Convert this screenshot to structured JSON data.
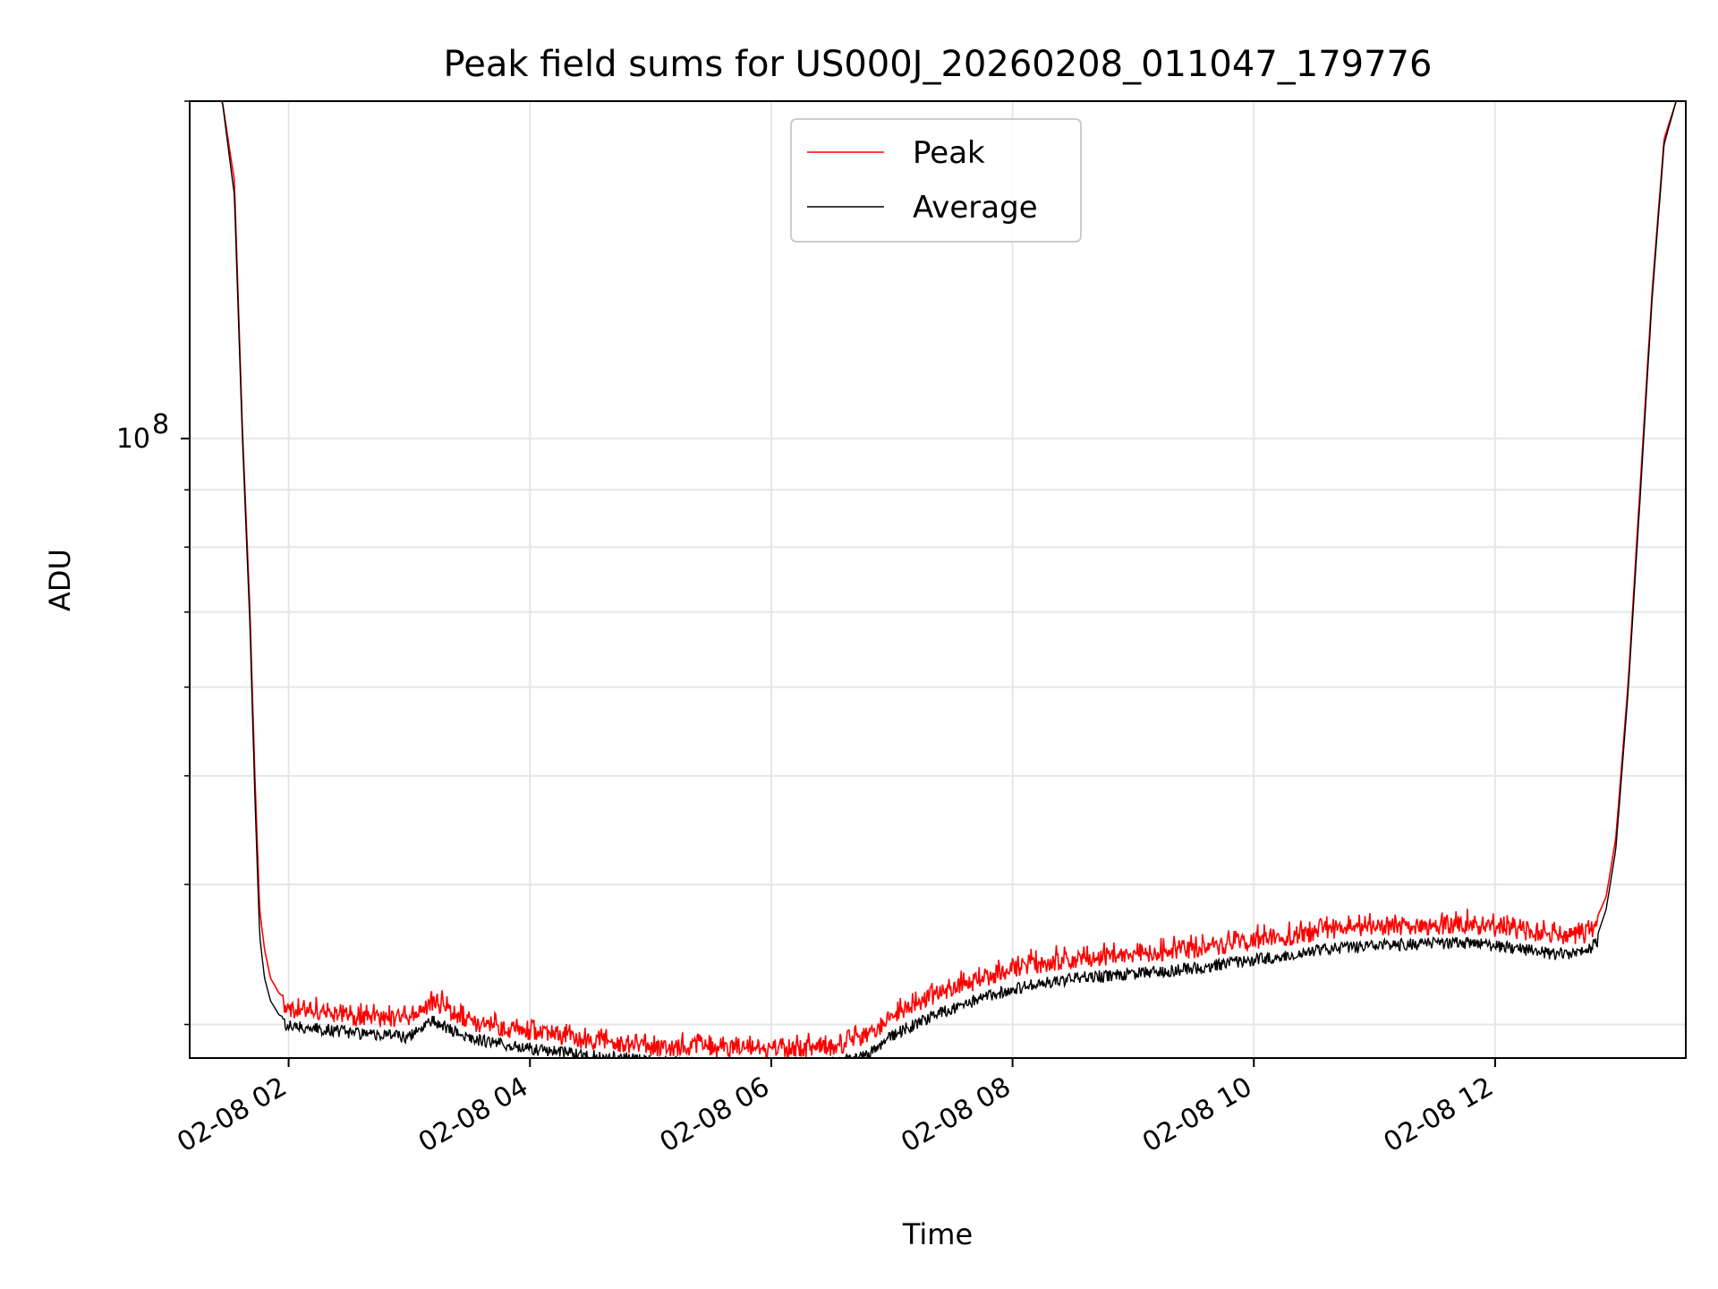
{
  "chart_data": {
    "type": "line",
    "title": "Peak field sums for US000J_20260208_011047_179776",
    "xlabel": "Time",
    "ylabel": "ADU",
    "yscale": "log",
    "ylim": [
      28000000,
      200000000
    ],
    "xlim": [
      1.18,
      13.58
    ],
    "grid": true,
    "legend_position": "top-center",
    "x_ticks": [
      {
        "value": 2,
        "label": "02-08 02"
      },
      {
        "value": 4,
        "label": "02-08 04"
      },
      {
        "value": 6,
        "label": "02-08 06"
      },
      {
        "value": 8,
        "label": "02-08 08"
      },
      {
        "value": 10,
        "label": "02-08 10"
      },
      {
        "value": 12,
        "label": "02-08 12"
      }
    ],
    "y_major_ticks": [
      {
        "value": 100000000,
        "base": "10",
        "exp": "8"
      }
    ],
    "y_minor_ticks": [
      30000000,
      40000000,
      50000000,
      60000000,
      70000000,
      80000000,
      90000000,
      200000000
    ],
    "x_unit_note": "hours since 2026-02-08 00:00",
    "series": [
      {
        "name": "Peak",
        "color": "#ff0000",
        "x": [
          1.38,
          1.45,
          1.55,
          1.62,
          1.68,
          1.72,
          1.76,
          1.8,
          1.85,
          1.92,
          2.0,
          2.5,
          3.0,
          3.1,
          3.2,
          3.4,
          3.6,
          4.0,
          4.5,
          5.0,
          5.5,
          6.0,
          6.5,
          6.8,
          7.0,
          7.3,
          7.6,
          8.0,
          8.5,
          9.0,
          9.5,
          10.0,
          10.4,
          10.5,
          11.0,
          11.5,
          11.8,
          12.2,
          12.5,
          12.75,
          12.85,
          12.92,
          13.0,
          13.1,
          13.2,
          13.3,
          13.4,
          13.5
        ],
        "y": [
          200000000,
          200000000,
          170000000,
          100000000,
          70000000,
          50000000,
          38000000,
          35000000,
          33000000,
          32000000,
          31500000,
          31000000,
          30800000,
          31300000,
          32000000,
          31000000,
          30500000,
          30000000,
          29500000,
          29100000,
          29000000,
          28900000,
          29100000,
          29700000,
          31000000,
          32200000,
          33100000,
          34200000,
          34900000,
          35200000,
          35600000,
          36200000,
          36600000,
          36900000,
          37200000,
          37400000,
          37400000,
          37000000,
          36600000,
          36700000,
          37500000,
          39000000,
          44000000,
          60000000,
          90000000,
          135000000,
          185000000,
          200000000
        ]
      },
      {
        "name": "Average",
        "color": "#000000",
        "x": [
          1.38,
          1.45,
          1.55,
          1.62,
          1.68,
          1.72,
          1.76,
          1.8,
          1.85,
          1.92,
          2.0,
          2.5,
          3.0,
          3.1,
          3.2,
          3.4,
          3.6,
          4.0,
          4.5,
          5.0,
          5.5,
          6.0,
          6.5,
          6.8,
          7.0,
          7.3,
          7.6,
          8.0,
          8.5,
          9.0,
          9.5,
          10.0,
          10.4,
          10.5,
          11.0,
          11.5,
          11.8,
          12.2,
          12.5,
          12.75,
          12.85,
          12.92,
          13.0,
          13.1,
          13.2,
          13.3,
          13.4,
          13.5
        ],
        "y": [
          200000000,
          200000000,
          165000000,
          98000000,
          68000000,
          48000000,
          36000000,
          33000000,
          31500000,
          30600000,
          30300000,
          29900000,
          29600000,
          30100000,
          30600000,
          29800000,
          29400000,
          28900000,
          28500000,
          28200000,
          28000000,
          27900000,
          28000000,
          28500000,
          29700000,
          30800000,
          31700000,
          32700000,
          33400000,
          33700000,
          34100000,
          34700000,
          35100000,
          35400000,
          35700000,
          35900000,
          35900000,
          35500000,
          35100000,
          35200000,
          36100000,
          38000000,
          43000000,
          59000000,
          88000000,
          133000000,
          183000000,
          200000000
        ]
      }
    ]
  }
}
